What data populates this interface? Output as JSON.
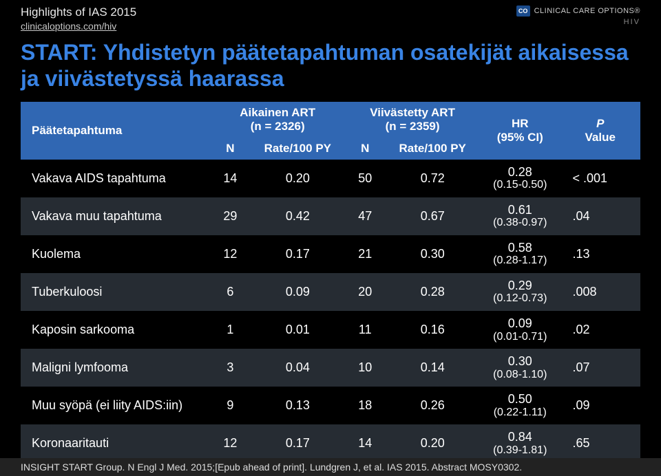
{
  "header": {
    "title": "Highlights of IAS 2015",
    "subtitle": "clinicaloptions.com/hiv",
    "logo_badge": "CO",
    "logo_text": "CLINICAL CARE OPTIONS®",
    "logo_hiv": "HIV"
  },
  "title": "START: Yhdistetyn päätetapahtuman osatekijät aikaisessa ja viivästetyssä haarassa",
  "table": {
    "head": {
      "endpoint": "Päätetapahtuma",
      "group1": "Aikainen ART",
      "group1_n": "(n = 2326)",
      "group2": "Viivästetty ART",
      "group2_n": "(n = 2359)",
      "hr": "HR",
      "hr_ci": "(95% CI)",
      "pvalue_p": "P",
      "pvalue_v": "Value",
      "sub_n": "N",
      "sub_rate": "Rate/100 PY"
    },
    "rows": [
      {
        "endpoint": "Vakava AIDS tapahtuma",
        "n1": "14",
        "r1": "0.20",
        "n2": "50",
        "r2": "0.72",
        "hr": "0.28",
        "ci": "(0.15-0.50)",
        "p": "< .001"
      },
      {
        "endpoint": "Vakava muu tapahtuma",
        "n1": "29",
        "r1": "0.42",
        "n2": "47",
        "r2": "0.67",
        "hr": "0.61",
        "ci": "(0.38-0.97)",
        "p": ".04"
      },
      {
        "endpoint": "Kuolema",
        "n1": "12",
        "r1": "0.17",
        "n2": "21",
        "r2": "0.30",
        "hr": "0.58",
        "ci": "(0.28-1.17)",
        "p": ".13"
      },
      {
        "endpoint": "Tuberkuloosi",
        "n1": "6",
        "r1": "0.09",
        "n2": "20",
        "r2": "0.28",
        "hr": "0.29",
        "ci": "(0.12-0.73)",
        "p": ".008"
      },
      {
        "endpoint": "Kaposin sarkooma",
        "n1": "1",
        "r1": "0.01",
        "n2": "11",
        "r2": "0.16",
        "hr": "0.09",
        "ci": "(0.01-0.71)",
        "p": ".02"
      },
      {
        "endpoint": "Maligni lymfooma",
        "n1": "3",
        "r1": "0.04",
        "n2": "10",
        "r2": "0.14",
        "hr": "0.30",
        "ci": "(0.08-1.10)",
        "p": ".07"
      },
      {
        "endpoint": "Muu syöpä (ei liity AIDS:iin)",
        "n1": "9",
        "r1": "0.13",
        "n2": "18",
        "r2": "0.26",
        "hr": "0.50",
        "ci": "(0.22-1.11)",
        "p": ".09"
      },
      {
        "endpoint": "Koronaaritauti",
        "n1": "12",
        "r1": "0.17",
        "n2": "14",
        "r2": "0.20",
        "hr": "0.84",
        "ci": "(0.39-1.81)",
        "p": ".65"
      }
    ]
  },
  "footer": "INSIGHT START Group. N Engl J Med. 2015;[Epub ahead of print]. Lundgren J, et al. IAS 2015. Abstract MOSY0302.",
  "colors": {
    "title": "#3983e4",
    "header_bg": "#3067b3",
    "row_alt_bg": "#262c33",
    "background": "#000000",
    "text": "#ffffff"
  }
}
